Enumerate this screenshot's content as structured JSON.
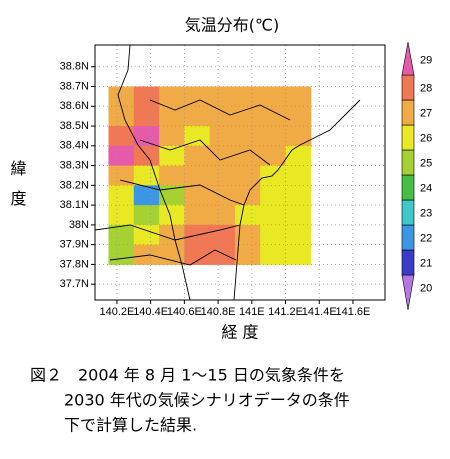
{
  "chart_data": {
    "type": "filled-map",
    "title": "気温分布(℃)",
    "x_label": "経 度",
    "y_label": "緯度",
    "xlim": [
      140.07,
      141.79
    ],
    "ylim": [
      37.62,
      38.91
    ],
    "xticks": [
      {
        "value": 140.2,
        "label": "140.2E"
      },
      {
        "value": 140.4,
        "label": "140.4E"
      },
      {
        "value": 140.6,
        "label": "140.6E"
      },
      {
        "value": 140.8,
        "label": "140.8E"
      },
      {
        "value": 141,
        "label": "141E"
      },
      {
        "value": 141.2,
        "label": "141.2E"
      },
      {
        "value": 141.4,
        "label": "141.4E"
      },
      {
        "value": 141.6,
        "label": "141.6E"
      }
    ],
    "yticks": [
      {
        "value": 38.8,
        "label": "38.8N"
      },
      {
        "value": 38.7,
        "label": "38.7N"
      },
      {
        "value": 38.6,
        "label": "38.6N"
      },
      {
        "value": 38.5,
        "label": "38.5N"
      },
      {
        "value": 38.4,
        "label": "38.4N"
      },
      {
        "value": 38.3,
        "label": "38.3N"
      },
      {
        "value": 38.2,
        "label": "38.2N"
      },
      {
        "value": 38.1,
        "label": "38.1N"
      },
      {
        "value": 38,
        "label": "38N"
      },
      {
        "value": 37.9,
        "label": "37.9N"
      },
      {
        "value": 37.8,
        "label": "37.8N"
      },
      {
        "value": 37.7,
        "label": "37.7N"
      }
    ],
    "grid": true,
    "lon": [
      140.15,
      140.3,
      140.45,
      140.6,
      140.75,
      140.9,
      141.05,
      141.2,
      141.35
    ],
    "lat": [
      38.7,
      38.6,
      38.5,
      38.4,
      38.3,
      38.2,
      38.1,
      38.0,
      37.9,
      37.8
    ],
    "values": [
      [
        27,
        28,
        27,
        27,
        27,
        27,
        27,
        27
      ],
      [
        27,
        28,
        27,
        27,
        27,
        27,
        27,
        27
      ],
      [
        28,
        29,
        27,
        26,
        27,
        27,
        27,
        27
      ],
      [
        29,
        28,
        26,
        27,
        27,
        27,
        27,
        26
      ],
      [
        27,
        26,
        27,
        27,
        27,
        27,
        26,
        26
      ],
      [
        26,
        22,
        25,
        27,
        27,
        27,
        26,
        26
      ],
      [
        26,
        25,
        26,
        27,
        27,
        26,
        26,
        26
      ],
      [
        25,
        26,
        27,
        28,
        28,
        27,
        26,
        26
      ],
      [
        25,
        27,
        27,
        28,
        28,
        27,
        26,
        26
      ]
    ],
    "colorbar": {
      "levels": [
        20,
        21,
        22,
        23,
        24,
        25,
        26,
        27,
        28,
        29
      ],
      "colors": [
        "#b478e6",
        "#3c3cc8",
        "#3c96e6",
        "#3cc8c8",
        "#46be46",
        "#a5d232",
        "#e8e824",
        "#f0aa46",
        "#f07855",
        "#e65aaa"
      ]
    }
  },
  "caption": [
    "図２　2004 年 8 月 1～15 日の気象条件を",
    "2030 年代の気候シナリオデータの条件",
    "下で計算した結果."
  ]
}
